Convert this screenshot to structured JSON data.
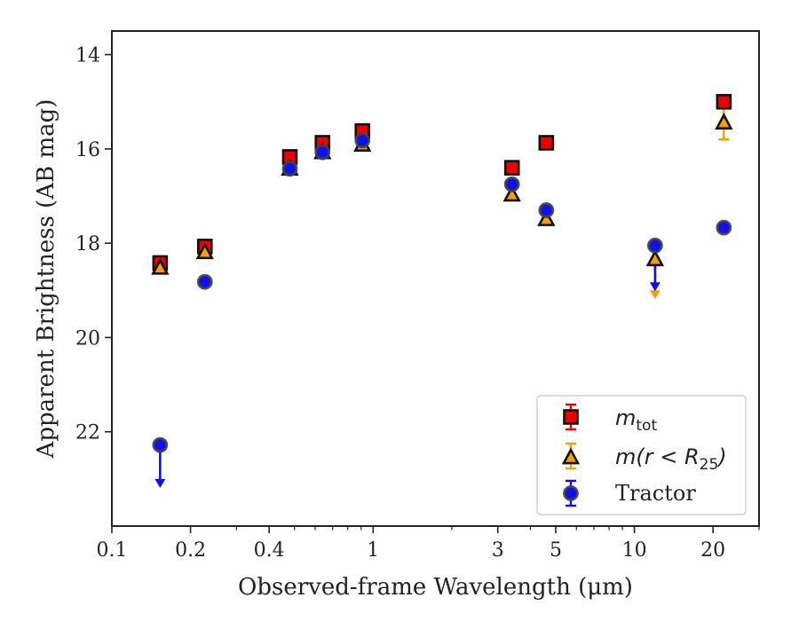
{
  "chart_data": {
    "type": "scatter",
    "title": "",
    "xlabel": "Observed-frame Wavelength (μm)",
    "ylabel": "Apparent Brightness (AB mag)",
    "xscale": "log",
    "xlim": [
      0.1,
      30
    ],
    "ylim": [
      24.0,
      13.5
    ],
    "y_inverted": true,
    "x_ticks": [
      {
        "value": 0.1,
        "label": "0.1"
      },
      {
        "value": 0.2,
        "label": "0.2"
      },
      {
        "value": 0.4,
        "label": "0.4"
      },
      {
        "value": 1,
        "label": "1"
      },
      {
        "value": 3,
        "label": "3"
      },
      {
        "value": 5,
        "label": "5"
      },
      {
        "value": 10,
        "label": "10"
      },
      {
        "value": 20,
        "label": "20"
      }
    ],
    "y_ticks": [
      {
        "value": 14,
        "label": "14"
      },
      {
        "value": 16,
        "label": "16"
      },
      {
        "value": 18,
        "label": "18"
      },
      {
        "value": 20,
        "label": "20"
      },
      {
        "value": 22,
        "label": "22"
      }
    ],
    "grid": false,
    "legend_position": "bottom-right",
    "series": [
      {
        "name": "m_tot",
        "marker": "square",
        "color": "#ee0000",
        "points": [
          {
            "x": 0.153,
            "y": 18.42
          },
          {
            "x": 0.227,
            "y": 18.07
          },
          {
            "x": 0.48,
            "y": 16.17
          },
          {
            "x": 0.64,
            "y": 15.87
          },
          {
            "x": 0.91,
            "y": 15.62
          },
          {
            "x": 3.4,
            "y": 16.4
          },
          {
            "x": 4.6,
            "y": 15.87
          },
          {
            "x": 22,
            "y": 15.0
          }
        ]
      },
      {
        "name": "m(r < R_25)",
        "marker": "triangle",
        "color": "#f5a000",
        "points": [
          {
            "x": 0.153,
            "y": 18.53
          },
          {
            "x": 0.227,
            "y": 18.2
          },
          {
            "x": 0.48,
            "y": 16.43
          },
          {
            "x": 0.64,
            "y": 16.08
          },
          {
            "x": 0.91,
            "y": 15.92
          },
          {
            "x": 3.4,
            "y": 16.98
          },
          {
            "x": 4.6,
            "y": 17.5
          },
          {
            "x": 12,
            "y": 18.35,
            "upper_limit": true,
            "limit_to": 19.15
          },
          {
            "x": 22,
            "y": 15.45,
            "yerr": 0.35
          }
        ]
      },
      {
        "name": "Tractor",
        "marker": "circle",
        "color": "#1010ee",
        "points": [
          {
            "x": 0.153,
            "y": 22.28,
            "upper_limit": true,
            "limit_to": 23.15
          },
          {
            "x": 0.227,
            "y": 18.82
          },
          {
            "x": 0.48,
            "y": 16.42
          },
          {
            "x": 0.64,
            "y": 16.07
          },
          {
            "x": 0.91,
            "y": 15.82
          },
          {
            "x": 3.4,
            "y": 16.75
          },
          {
            "x": 4.6,
            "y": 17.3
          },
          {
            "x": 12,
            "y": 18.05,
            "upper_limit": true,
            "limit_to": 18.98
          },
          {
            "x": 22,
            "y": 17.67
          }
        ]
      }
    ]
  },
  "legend": {
    "entries": [
      {
        "key": "mtot",
        "main": "m",
        "sub": "tot"
      },
      {
        "key": "mr",
        "prefix": "m(r < R",
        "sub": "25",
        "suffix": ")"
      },
      {
        "key": "tractor",
        "label": "Tractor"
      }
    ]
  }
}
